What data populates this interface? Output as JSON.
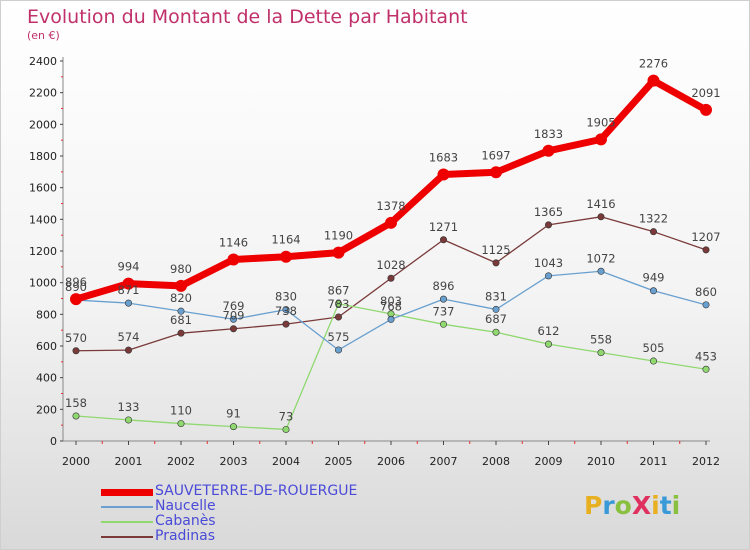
{
  "title": "Evolution du Montant de la Dette par Habitant",
  "subtitle": "(en €)",
  "logo": {
    "text": "ProXiti",
    "letters": [
      "P",
      "r",
      "o",
      "X",
      "i",
      "t",
      "i"
    ],
    "colors": [
      "#e8b020",
      "#3a9ad8",
      "#8ac040",
      "#e03060",
      "#e8b020",
      "#3a9ad8",
      "#8ac040"
    ]
  },
  "chart_data": {
    "type": "line",
    "title": "Evolution du Montant de la Dette par Habitant",
    "subtitle": "(en €)",
    "x": [
      "2000",
      "2001",
      "2002",
      "2003",
      "2004",
      "2005",
      "2006",
      "2007",
      "2008",
      "2009",
      "2010",
      "2011",
      "2012"
    ],
    "ylim": [
      0,
      2400
    ],
    "yticks": [
      0,
      200,
      400,
      600,
      800,
      1000,
      1200,
      1400,
      1600,
      1800,
      2000,
      2200,
      2400
    ],
    "grid": false,
    "legend_position": "bottom-left",
    "series": [
      {
        "name": "SAUVETERRE-DE-ROUERGUE",
        "color": "#ee0000",
        "values": [
          896,
          994,
          980,
          1146,
          1164,
          1190,
          1378,
          1683,
          1697,
          1833,
          1905,
          2276,
          2091
        ]
      },
      {
        "name": "Naucelle",
        "color": "#6aa0d0",
        "values": [
          890,
          871,
          820,
          769,
          830,
          575,
          768,
          896,
          831,
          1043,
          1072,
          949,
          860
        ]
      },
      {
        "name": "Cabanès",
        "color": "#90d870",
        "values": [
          158,
          133,
          110,
          91,
          73,
          867,
          803,
          737,
          687,
          612,
          558,
          505,
          453
        ]
      },
      {
        "name": "Pradinas",
        "color": "#7a3a3a",
        "values": [
          570,
          574,
          681,
          709,
          738,
          783,
          1028,
          1271,
          1125,
          1365,
          1416,
          1322,
          1207
        ]
      }
    ]
  }
}
